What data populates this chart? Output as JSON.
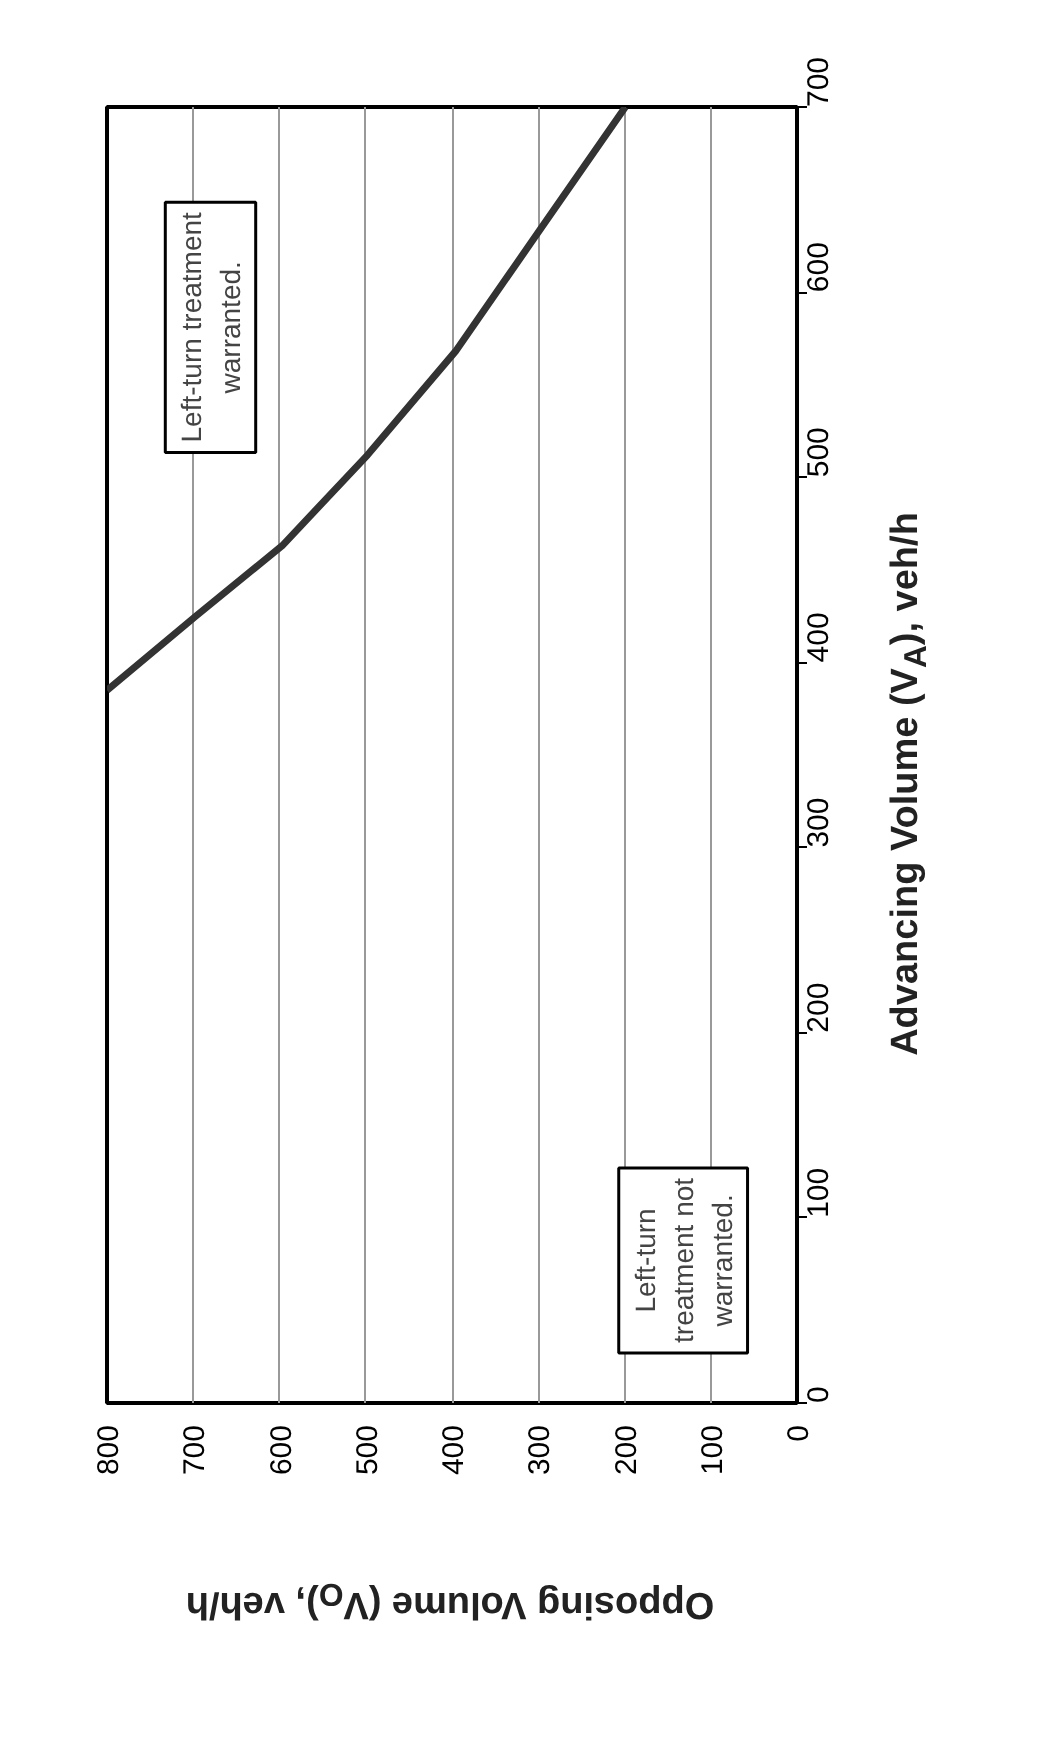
{
  "chart_data": {
    "type": "line",
    "xlabel": "Opposing Volume (V$_{O}$), veh/h",
    "ylabel": "Advancing Volume (V$_{A}$), veh/h",
    "x": [
      800,
      697,
      597,
      498,
      396,
      296,
      199
    ],
    "series": [
      {
        "color": "#333333",
        "values": [
          385,
          425,
          463,
          512,
          568,
          635,
          700
        ]
      }
    ],
    "xlim": [
      800,
      0
    ],
    "ylim": [
      0,
      700
    ],
    "xticks": [
      800,
      700,
      600,
      500,
      400,
      300,
      200,
      100,
      0
    ],
    "yticks": [
      0,
      100,
      200,
      300,
      400,
      500,
      600,
      700
    ],
    "grid": "x",
    "marker": "none",
    "line_style": "solid",
    "annotations": [
      "Left-turn treatment\nwarranted.",
      "Left-turn\ntreatment not\nwarranted."
    ]
  }
}
